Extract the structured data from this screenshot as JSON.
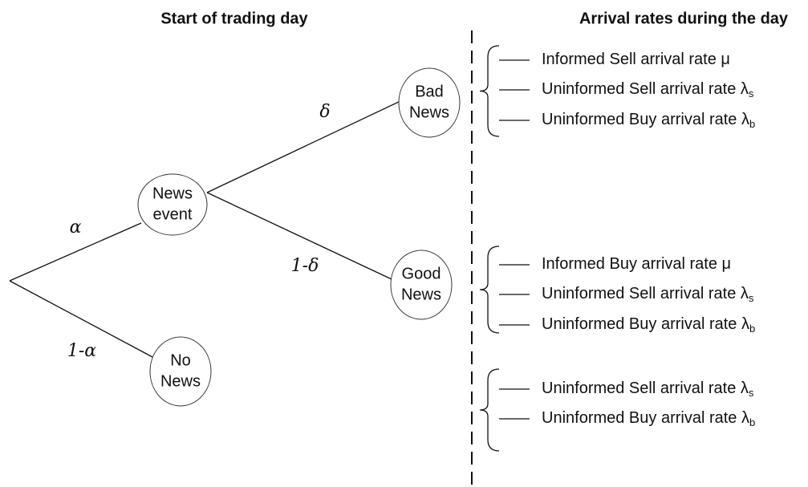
{
  "headers": {
    "left": "Start of trading day",
    "right": "Arrival rates during the day"
  },
  "nodes": [
    {
      "lines": [
        "News",
        "event"
      ]
    },
    {
      "lines": [
        "No",
        "News"
      ]
    },
    {
      "lines": [
        "Bad",
        "News"
      ]
    },
    {
      "lines": [
        "Good",
        "News"
      ]
    }
  ],
  "edge_labels": [
    "α",
    "1-α",
    "δ",
    "1-δ"
  ],
  "groups": [
    {
      "rates": [
        {
          "text": "Informed Sell arrival rate  μ"
        },
        {
          "text": "Uninformed Sell arrival rate λ",
          "sub": "s"
        },
        {
          "text": "Uninformed Buy arrival rate λ",
          "sub": "b"
        }
      ]
    },
    {
      "rates": [
        {
          "text": "Informed Buy arrival rate  μ"
        },
        {
          "text": "Uninformed Sell arrival rate λ",
          "sub": "s"
        },
        {
          "text": "Uninformed Buy arrival rate λ",
          "sub": "b"
        }
      ]
    },
    {
      "rates": [
        {
          "text": "Uninformed Sell arrival rate λ",
          "sub": "s"
        },
        {
          "text": "Uninformed Buy arrival rate λ",
          "sub": "b"
        }
      ]
    }
  ]
}
